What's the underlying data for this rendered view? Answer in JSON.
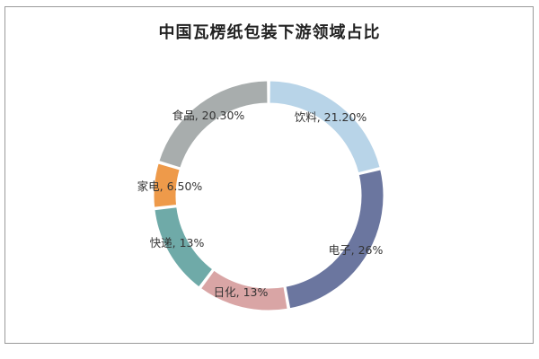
{
  "chart_data": {
    "type": "pie",
    "title": "中国瓦楞纸包装下游领域占比",
    "style": "donut",
    "slices": [
      {
        "label": "饮料",
        "value": 21.2,
        "display": "饮料, 21.20%",
        "color": "#b8d4e8"
      },
      {
        "label": "电子",
        "value": 26,
        "display": "电子, 26%",
        "color": "#6b769f"
      },
      {
        "label": "日化",
        "value": 13,
        "display": "日化, 13%",
        "color": "#d9a5a5"
      },
      {
        "label": "快递",
        "value": 13,
        "display": "快递, 13%",
        "color": "#6faaa8"
      },
      {
        "label": "家电",
        "value": 6.5,
        "display": "家电, 6.50%",
        "color": "#ee9a4a"
      },
      {
        "label": "食品",
        "value": 20.3,
        "display": "食品, 20.30%",
        "color": "#a8adad"
      }
    ],
    "legend": "none"
  }
}
